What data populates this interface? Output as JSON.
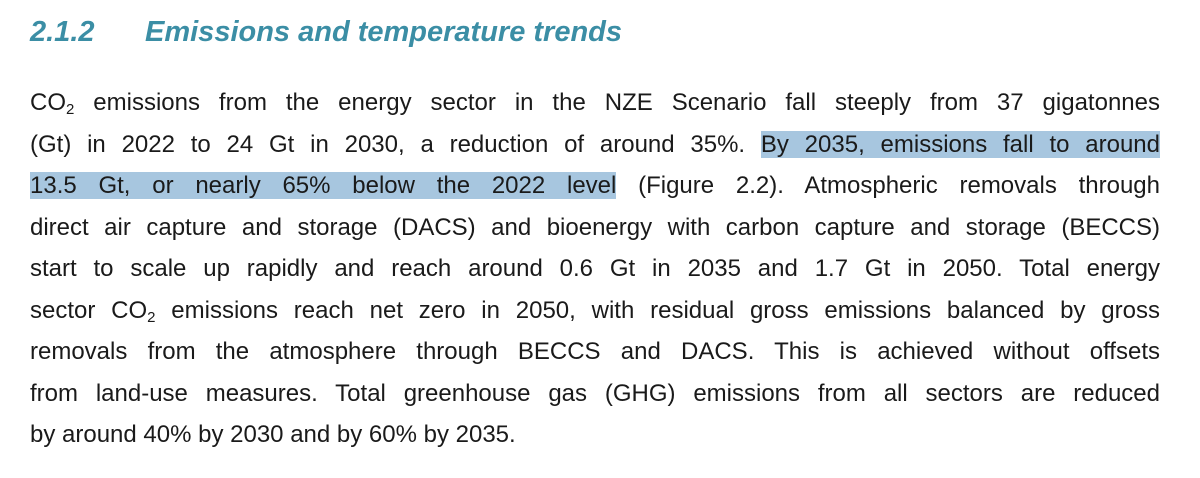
{
  "heading": {
    "number": "2.1.2",
    "title": "Emissions and temperature trends"
  },
  "paragraph": {
    "highlight_color": "#a7c6df",
    "lines": [
      [
        {
          "text": "CO"
        },
        {
          "text": "2",
          "sub": true
        },
        {
          "text": " emissions from the energy sector in the NZE Scenario fall steeply from 37 gigatonnes"
        }
      ],
      [
        {
          "text": "(Gt) in 2022 to 24 Gt in 2030, a reduction of around 35%. "
        },
        {
          "text": "By 2035, emissions fall to around",
          "highlight": true
        }
      ],
      [
        {
          "text": "13.5 Gt, or nearly 65% below the 2022 level",
          "highlight": true
        },
        {
          "text": " (Figure 2.2). Atmospheric removals through"
        }
      ],
      [
        {
          "text": "direct air capture and storage (DACS) and bioenergy with carbon capture and storage (BECCS)"
        }
      ],
      [
        {
          "text": "start to scale up rapidly and reach around 0.6 Gt in 2035 and 1.7 Gt in 2050. Total energy"
        }
      ],
      [
        {
          "text": "sector CO"
        },
        {
          "text": "2",
          "sub": true
        },
        {
          "text": " emissions reach net zero in 2050, with residual gross emissions balanced by gross"
        }
      ],
      [
        {
          "text": "removals from the atmosphere through BECCS and DACS. This is achieved without offsets"
        }
      ],
      [
        {
          "text": "from land-use measures. Total greenhouse gas (GHG) emissions from all sectors are reduced"
        }
      ],
      [
        {
          "text": "by around 40% by 2030 and by 60% by 2035."
        }
      ]
    ]
  }
}
